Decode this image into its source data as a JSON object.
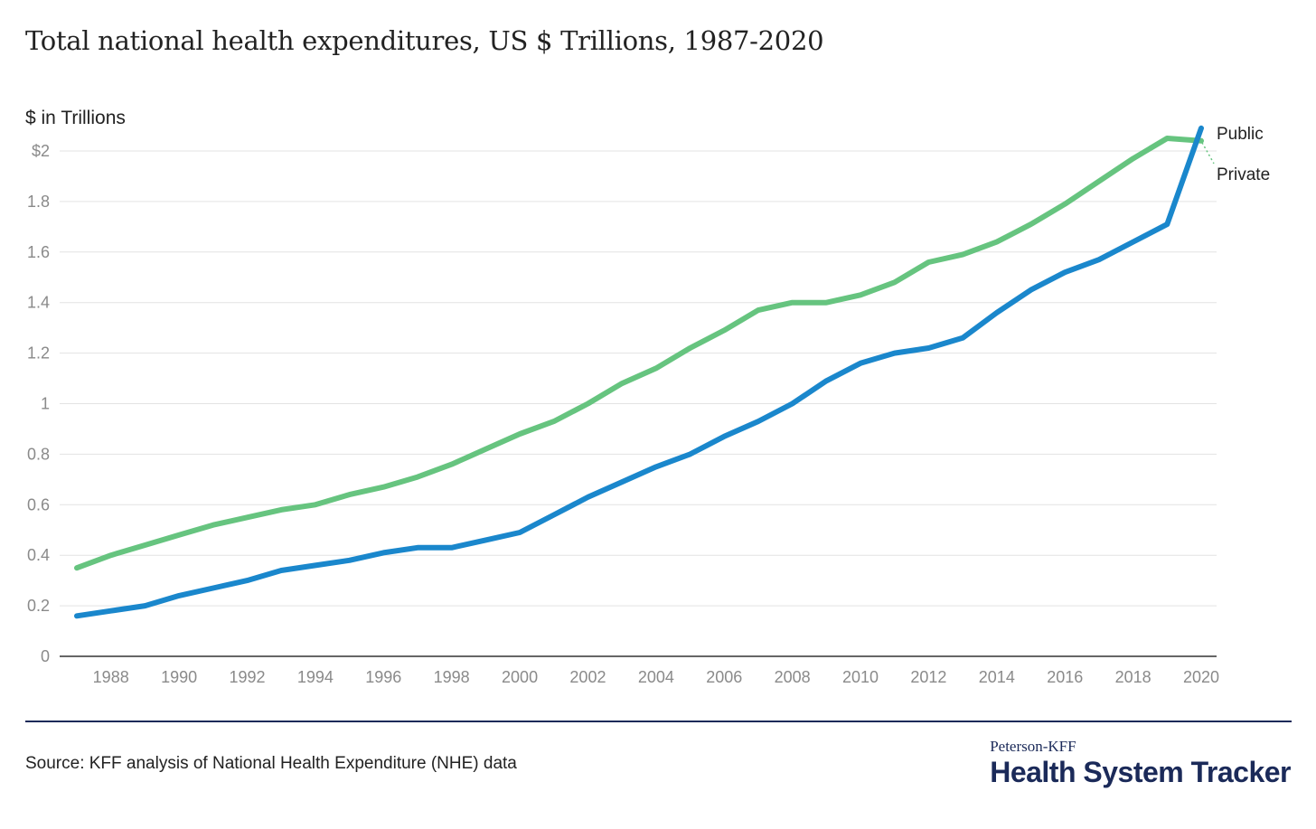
{
  "title": "Total national health expenditures, US $ Trillions, 1987-2020",
  "source": "Source: KFF analysis of National Health Expenditure (NHE) data",
  "brand": {
    "top": "Peterson-KFF",
    "main": "Health System Tracker"
  },
  "colors": {
    "public": "#1a87cc",
    "private": "#66c47f",
    "grid": "#e3e3e3",
    "axis": "#333333",
    "rule": "#1b2a59"
  },
  "chart_data": {
    "type": "line",
    "title": "Total national health expenditures, US $ Trillions, 1987-2020",
    "xlabel": "",
    "ylabel": "$ in Trillions",
    "ylim": [
      0,
      2
    ],
    "xlim": [
      1987,
      2020
    ],
    "grid": true,
    "y_ticks": [
      0,
      0.2,
      0.4,
      0.6,
      0.8,
      1,
      1.2,
      1.4,
      1.6,
      1.8,
      2
    ],
    "y_tick_labels": [
      "0",
      "0.2",
      "0.4",
      "0.6",
      "0.8",
      "1",
      "1.2",
      "1.4",
      "1.6",
      "1.8",
      "$2"
    ],
    "x_ticks": [
      1988,
      1990,
      1992,
      1994,
      1996,
      1998,
      2000,
      2002,
      2004,
      2006,
      2008,
      2010,
      2012,
      2014,
      2016,
      2018,
      2020
    ],
    "x_tick_labels": [
      "1988",
      "1990",
      "1992",
      "1994",
      "1996",
      "1998",
      "2000",
      "2002",
      "2004",
      "2006",
      "2008",
      "2010",
      "2012",
      "2014",
      "2016",
      "2018",
      "2020"
    ],
    "x": [
      1987,
      1988,
      1989,
      1990,
      1991,
      1992,
      1993,
      1994,
      1995,
      1996,
      1997,
      1998,
      1999,
      2000,
      2001,
      2002,
      2003,
      2004,
      2005,
      2006,
      2007,
      2008,
      2009,
      2010,
      2011,
      2012,
      2013,
      2014,
      2015,
      2016,
      2017,
      2018,
      2019,
      2020
    ],
    "series": [
      {
        "name": "Private",
        "color": "#66c47f",
        "values": [
          0.35,
          0.4,
          0.44,
          0.48,
          0.52,
          0.55,
          0.58,
          0.6,
          0.64,
          0.67,
          0.71,
          0.76,
          0.82,
          0.88,
          0.93,
          1.0,
          1.08,
          1.14,
          1.22,
          1.29,
          1.37,
          1.4,
          1.4,
          1.43,
          1.48,
          1.56,
          1.59,
          1.64,
          1.71,
          1.79,
          1.88,
          1.97,
          2.05,
          2.04
        ]
      },
      {
        "name": "Public",
        "color": "#1a87cc",
        "values": [
          0.16,
          0.18,
          0.2,
          0.24,
          0.27,
          0.3,
          0.34,
          0.36,
          0.38,
          0.41,
          0.43,
          0.43,
          0.46,
          0.49,
          0.56,
          0.63,
          0.69,
          0.75,
          0.8,
          0.87,
          0.93,
          1.0,
          1.09,
          1.16,
          1.2,
          1.22,
          1.26,
          1.36,
          1.45,
          1.52,
          1.57,
          1.64,
          1.71,
          2.09
        ]
      }
    ],
    "legend": "end-of-line labels, right"
  }
}
